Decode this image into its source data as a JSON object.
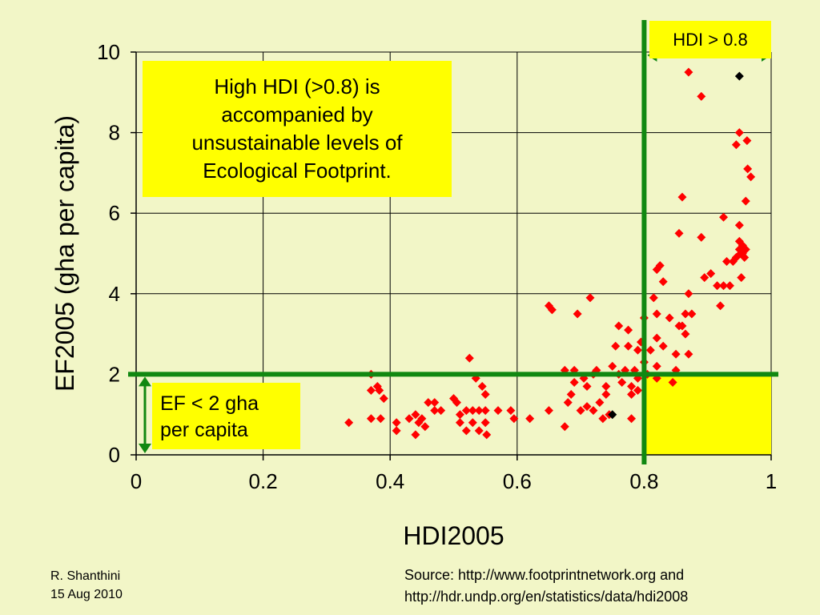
{
  "chart_data": {
    "type": "scatter",
    "xlabel": "HDI2005",
    "ylabel": "EF2005 (gha per capita)",
    "xlim": [
      0,
      1
    ],
    "ylim": [
      0,
      10
    ],
    "x_ticks": [
      "0",
      "0.2",
      "0.4",
      "0.6",
      "0.8",
      "1"
    ],
    "y_ticks": [
      "0",
      "2",
      "4",
      "6",
      "8",
      "10"
    ],
    "grid": true,
    "series": [
      {
        "color": "#ff0000",
        "marker": "diamond",
        "points": [
          [
            0.335,
            0.8
          ],
          [
            0.37,
            2.0
          ],
          [
            0.37,
            1.6
          ],
          [
            0.38,
            1.7
          ],
          [
            0.383,
            1.6
          ],
          [
            0.37,
            0.9
          ],
          [
            0.385,
            0.9
          ],
          [
            0.39,
            1.4
          ],
          [
            0.41,
            0.8
          ],
          [
            0.41,
            0.6
          ],
          [
            0.43,
            0.9
          ],
          [
            0.44,
            1.0
          ],
          [
            0.44,
            0.5
          ],
          [
            0.445,
            0.8
          ],
          [
            0.45,
            0.9
          ],
          [
            0.455,
            0.7
          ],
          [
            0.46,
            1.3
          ],
          [
            0.47,
            1.1
          ],
          [
            0.47,
            1.3
          ],
          [
            0.48,
            1.1
          ],
          [
            0.5,
            1.4
          ],
          [
            0.505,
            1.3
          ],
          [
            0.51,
            1.0
          ],
          [
            0.51,
            0.8
          ],
          [
            0.52,
            1.1
          ],
          [
            0.52,
            0.6
          ],
          [
            0.525,
            2.4
          ],
          [
            0.53,
            1.1
          ],
          [
            0.53,
            0.8
          ],
          [
            0.535,
            1.9
          ],
          [
            0.54,
            1.1
          ],
          [
            0.54,
            0.6
          ],
          [
            0.545,
            1.7
          ],
          [
            0.55,
            0.8
          ],
          [
            0.55,
            1.1
          ],
          [
            0.55,
            1.5
          ],
          [
            0.552,
            0.5
          ],
          [
            0.57,
            1.1
          ],
          [
            0.59,
            1.1
          ],
          [
            0.595,
            0.9
          ],
          [
            0.62,
            0.9
          ],
          [
            0.65,
            1.1
          ],
          [
            0.65,
            3.7
          ],
          [
            0.655,
            3.6
          ],
          [
            0.675,
            2.1
          ],
          [
            0.675,
            0.7
          ],
          [
            0.68,
            1.3
          ],
          [
            0.685,
            1.5
          ],
          [
            0.69,
            1.8
          ],
          [
            0.69,
            2.1
          ],
          [
            0.695,
            3.5
          ],
          [
            0.7,
            1.1
          ],
          [
            0.705,
            1.9
          ],
          [
            0.71,
            1.2
          ],
          [
            0.71,
            1.7
          ],
          [
            0.715,
            3.9
          ],
          [
            0.72,
            2.0
          ],
          [
            0.72,
            1.1
          ],
          [
            0.725,
            2.1
          ],
          [
            0.73,
            1.3
          ],
          [
            0.735,
            0.9
          ],
          [
            0.74,
            1.7
          ],
          [
            0.74,
            1.5
          ],
          [
            0.745,
            1.0
          ],
          [
            0.75,
            2.2
          ],
          [
            0.755,
            2.7
          ],
          [
            0.76,
            3.2
          ],
          [
            0.76,
            2.0
          ],
          [
            0.765,
            1.8
          ],
          [
            0.77,
            2.1
          ],
          [
            0.775,
            2.7
          ],
          [
            0.775,
            3.1
          ],
          [
            0.78,
            1.7
          ],
          [
            0.78,
            1.5
          ],
          [
            0.78,
            0.9
          ],
          [
            0.785,
            2.1
          ],
          [
            0.79,
            1.9
          ],
          [
            0.79,
            2.6
          ],
          [
            0.79,
            1.6
          ],
          [
            0.795,
            2.8
          ],
          [
            0.8,
            2.0
          ],
          [
            0.8,
            2.3
          ],
          [
            0.8,
            3.4
          ],
          [
            0.805,
            2.0
          ],
          [
            0.81,
            2.6
          ],
          [
            0.815,
            3.9
          ],
          [
            0.82,
            2.9
          ],
          [
            0.82,
            1.9
          ],
          [
            0.82,
            2.2
          ],
          [
            0.82,
            3.5
          ],
          [
            0.82,
            4.6
          ],
          [
            0.825,
            4.7
          ],
          [
            0.83,
            4.3
          ],
          [
            0.83,
            2.7
          ],
          [
            0.84,
            3.4
          ],
          [
            0.845,
            1.8
          ],
          [
            0.85,
            2.5
          ],
          [
            0.85,
            2.1
          ],
          [
            0.855,
            3.2
          ],
          [
            0.855,
            5.5
          ],
          [
            0.86,
            3.2
          ],
          [
            0.86,
            6.4
          ],
          [
            0.865,
            3.5
          ],
          [
            0.865,
            3.0
          ],
          [
            0.87,
            2.5
          ],
          [
            0.87,
            4.0
          ],
          [
            0.87,
            9.5
          ],
          [
            0.875,
            3.5
          ],
          [
            0.89,
            8.9
          ],
          [
            0.89,
            5.4
          ],
          [
            0.895,
            4.4
          ],
          [
            0.905,
            4.5
          ],
          [
            0.915,
            4.2
          ],
          [
            0.92,
            3.7
          ],
          [
            0.925,
            4.2
          ],
          [
            0.925,
            5.9
          ],
          [
            0.93,
            4.8
          ],
          [
            0.935,
            4.2
          ],
          [
            0.94,
            4.8
          ],
          [
            0.945,
            4.9
          ],
          [
            0.945,
            7.7
          ],
          [
            0.95,
            5.7
          ],
          [
            0.95,
            5.3
          ],
          [
            0.95,
            5.1
          ],
          [
            0.952,
            5.0
          ],
          [
            0.953,
            4.4
          ],
          [
            0.955,
            5.2
          ],
          [
            0.955,
            5.0
          ],
          [
            0.958,
            4.9
          ],
          [
            0.96,
            5.1
          ],
          [
            0.96,
            6.3
          ],
          [
            0.962,
            7.8
          ],
          [
            0.963,
            7.1
          ],
          [
            0.968,
            6.9
          ],
          [
            0.95,
            8.0
          ]
        ]
      },
      {
        "color": "#000000",
        "marker": "diamond",
        "points": [
          [
            0.75,
            1.0
          ],
          [
            0.95,
            9.4
          ]
        ]
      }
    ],
    "threshold_lines": {
      "hdi": 0.8,
      "ef": 2
    },
    "highlight_region": {
      "hdi_from": 0.8,
      "hdi_to": 1.0,
      "ef_from": 0,
      "ef_to": 2,
      "color": "#ffff00"
    },
    "line_color": "#118811"
  },
  "annotations": {
    "main_lines": [
      "High HDI (>0.8) is",
      "accompanied by",
      "unsustainable levels of",
      "Ecological Footprint."
    ],
    "ef_lines": [
      "EF < 2 gha",
      "per capita"
    ],
    "hdi_label": "HDI > 0.8"
  },
  "footer": {
    "author": "R. Shanthini",
    "date": "15 Aug 2010",
    "source_line1": "Source: http://www.footprintnetwork.org and",
    "source_line2": "http://hdr.undp.org/en/statistics/data/hdi2008"
  }
}
